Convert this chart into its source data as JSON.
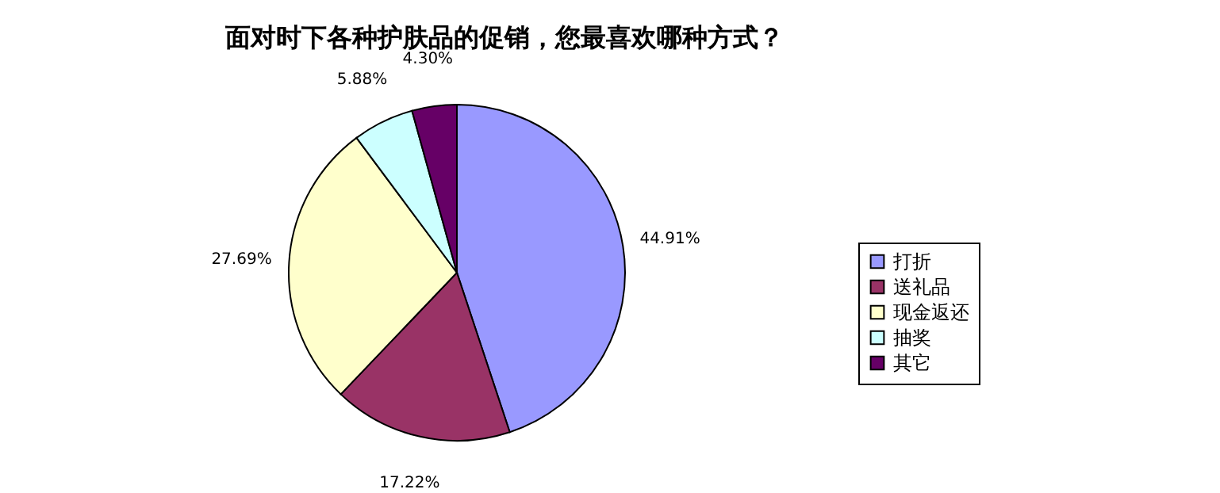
{
  "chart_data": {
    "type": "pie",
    "title": "面对时下各种护肤品的促销，您最喜欢哪种方式？",
    "categories": [
      "打折",
      "送礼品",
      "现金返还",
      "抽奖",
      "其它"
    ],
    "values": [
      44.91,
      17.22,
      27.69,
      5.88,
      4.3
    ],
    "colors": [
      "#9999ff",
      "#993366",
      "#ffffcc",
      "#ccffff",
      "#660066"
    ],
    "value_labels": [
      "44.91%",
      "17.22%",
      "27.69%",
      "5.88%",
      "4.30%"
    ],
    "legend": "right"
  }
}
